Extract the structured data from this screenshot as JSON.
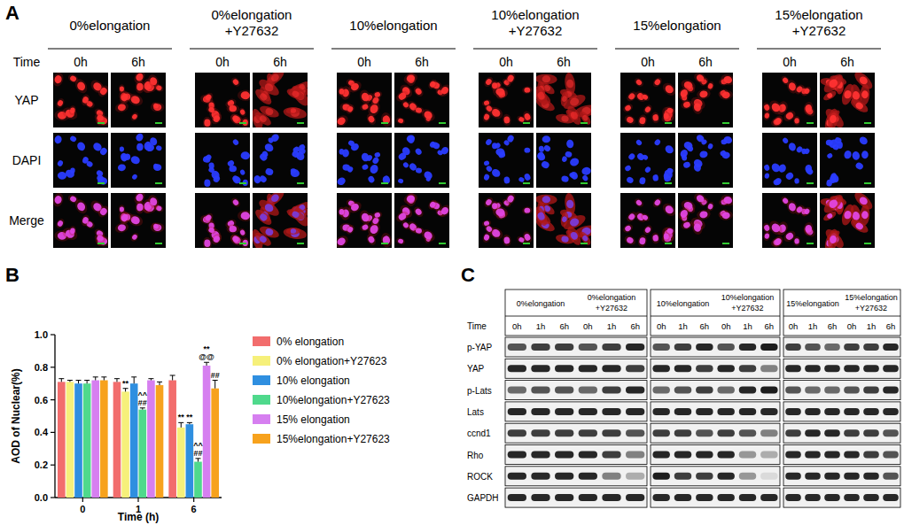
{
  "panel_labels": [
    "A",
    "B",
    "C"
  ],
  "panel_a": {
    "groups": [
      [
        "0%elongation"
      ],
      [
        "0%elongation",
        "+Y27632"
      ],
      [
        "10%elongation"
      ],
      [
        "10%elongation",
        "+Y27632"
      ],
      [
        "15%elongation"
      ],
      [
        "15%elongation",
        "+Y27632"
      ]
    ],
    "time_label": "Time",
    "times": [
      "0h",
      "6h"
    ],
    "rows": [
      "YAP",
      "DAPI",
      "Merge"
    ]
  },
  "chart_data": {
    "type": "bar",
    "x_label": "Time (h)",
    "y_label": "AOD of Nuclear(%)",
    "categories": [
      "0",
      "1",
      "6"
    ],
    "ylim": [
      0,
      1
    ],
    "yticks": [
      {
        "value": 0,
        "label": "0.0"
      },
      0.2,
      0.4,
      0.6,
      0.8,
      {
        "value": 1,
        "label": "1.0"
      }
    ],
    "legend": "right",
    "series": [
      {
        "name": "0% elongation",
        "color": "#f26d6d",
        "values": [
          0.71,
          0.71,
          0.72
        ],
        "errors": [
          0.02,
          0.02,
          0.03
        ],
        "significance": [
          null,
          null,
          null
        ]
      },
      {
        "name": "0% elongation+Y27623",
        "color": "#f6f07a",
        "values": [
          0.71,
          0.65,
          0.43
        ],
        "errors": [
          0.01,
          0.02,
          0.03
        ],
        "significance": [
          null,
          [
            "**"
          ],
          [
            "**"
          ]
        ]
      },
      {
        "name": "10% elongation",
        "color": "#2f8fe0",
        "values": [
          0.7,
          0.7,
          0.45
        ],
        "errors": [
          0.02,
          0.04,
          0.01
        ],
        "significance": [
          null,
          null,
          [
            "**"
          ]
        ]
      },
      {
        "name": "10%elongation+Y27623",
        "color": "#4fd98c",
        "values": [
          0.7,
          0.54,
          0.22
        ],
        "errors": [
          0.02,
          0.01,
          0.02
        ],
        "significance": [
          null,
          [
            "^^",
            "##"
          ],
          [
            "^^",
            "##"
          ]
        ]
      },
      {
        "name": "15% elongation",
        "color": "#d67ff0",
        "values": [
          0.72,
          0.72,
          0.81
        ],
        "errors": [
          0.02,
          0.01,
          0.02
        ],
        "significance": [
          null,
          null,
          [
            "**",
            "@@"
          ]
        ]
      },
      {
        "name": "15%elongation+Y27623",
        "color": "#f7a21d",
        "values": [
          0.72,
          0.69,
          0.67
        ],
        "errors": [
          0.02,
          0.02,
          0.05
        ],
        "significance": [
          null,
          null,
          [
            "##"
          ]
        ]
      }
    ]
  },
  "panel_c": {
    "groups": [
      [
        "0%elongation"
      ],
      [
        "0%elongation",
        "+Y27632"
      ],
      [
        "10%elongation"
      ],
      [
        "10%elongation",
        "+Y27632"
      ],
      [
        "15%elongation"
      ],
      [
        "15%elongation",
        "+Y27632"
      ]
    ],
    "time_label": "Time",
    "times": [
      "0h",
      "1h",
      "6h"
    ],
    "rows": [
      {
        "name": "p-YAP",
        "intensity": [
          0.7,
          0.8,
          0.8,
          0.7,
          0.8,
          0.9,
          0.7,
          0.8,
          0.9,
          0.7,
          0.9,
          0.95,
          0.8,
          0.7,
          0.6,
          0.8,
          0.8,
          0.9
        ]
      },
      {
        "name": "YAP",
        "intensity": [
          0.9,
          0.9,
          0.9,
          0.9,
          0.9,
          0.8,
          0.9,
          0.9,
          0.8,
          0.9,
          0.8,
          0.5,
          0.9,
          0.9,
          0.9,
          0.9,
          0.9,
          0.9
        ]
      },
      {
        "name": "p-Lats",
        "intensity": [
          0.6,
          0.7,
          0.7,
          0.6,
          0.8,
          0.9,
          0.6,
          0.7,
          0.8,
          0.6,
          0.9,
          0.95,
          0.7,
          0.6,
          0.6,
          0.7,
          0.8,
          0.9
        ]
      },
      {
        "name": "Lats",
        "intensity": [
          0.9,
          0.9,
          0.9,
          0.9,
          0.9,
          0.9,
          0.9,
          0.9,
          0.9,
          0.9,
          0.9,
          0.9,
          0.9,
          0.9,
          0.9,
          0.9,
          0.9,
          0.9
        ]
      },
      {
        "name": "ccnd1",
        "intensity": [
          0.8,
          0.8,
          0.8,
          0.8,
          0.8,
          0.7,
          0.8,
          0.8,
          0.7,
          0.8,
          0.7,
          0.5,
          0.8,
          0.9,
          0.9,
          0.8,
          0.8,
          0.7
        ]
      },
      {
        "name": "Rho",
        "intensity": [
          0.9,
          0.9,
          0.9,
          0.9,
          0.8,
          0.5,
          0.9,
          0.9,
          0.9,
          0.9,
          0.4,
          0.3,
          0.9,
          0.9,
          0.9,
          0.9,
          0.8,
          0.7
        ]
      },
      {
        "name": "ROCK",
        "intensity": [
          0.9,
          0.9,
          0.9,
          0.9,
          0.5,
          0.3,
          0.95,
          0.8,
          0.8,
          0.9,
          0.4,
          0.1,
          0.9,
          0.9,
          0.9,
          0.9,
          0.9,
          0.7
        ]
      },
      {
        "name": "GAPDH",
        "intensity": [
          0.9,
          0.9,
          0.9,
          0.9,
          0.9,
          0.9,
          0.9,
          0.9,
          0.9,
          0.9,
          0.9,
          0.9,
          0.9,
          0.9,
          0.9,
          0.9,
          0.9,
          0.9
        ]
      }
    ]
  }
}
